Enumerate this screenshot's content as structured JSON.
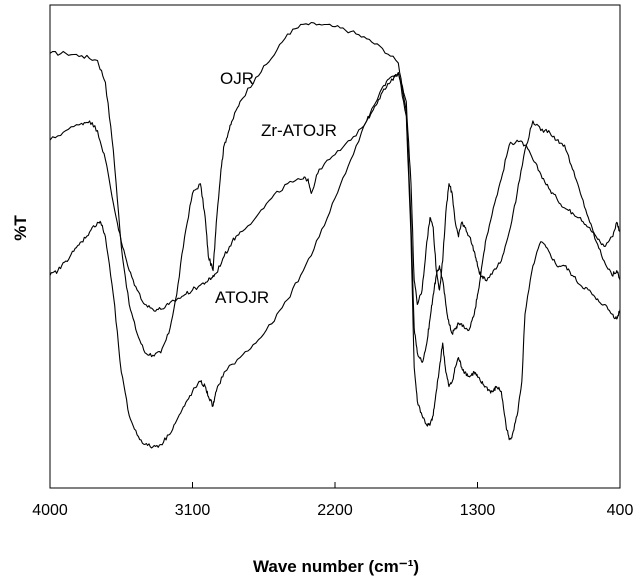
{
  "chart_data": {
    "type": "line",
    "title": "",
    "xlabel": "Wave number (cm⁻¹)",
    "ylabel": "%T",
    "xlim": [
      4000,
      400
    ],
    "x_reversed": true,
    "ylim": [
      0,
      100
    ],
    "x_ticks": [
      "4000",
      "3100",
      "2200",
      "1300",
      "400"
    ],
    "y_ticks": [],
    "grid": false,
    "legend": "none",
    "annotations": [
      "OJR",
      "Zr-ATOJR",
      "ATOJR"
    ],
    "series": [
      {
        "name": "OJR",
        "x": [
          4000,
          3900,
          3800,
          3700,
          3650,
          3600,
          3550,
          3500,
          3450,
          3400,
          3350,
          3300,
          3250,
          3200,
          3150,
          3100,
          3050,
          3020,
          3000,
          2970,
          2950,
          2920,
          2900,
          2870,
          2850,
          2800,
          2700,
          2600,
          2500,
          2400,
          2300,
          2200,
          2100,
          2000,
          1900,
          1800,
          1750,
          1720,
          1700,
          1680,
          1650,
          1620,
          1600,
          1580,
          1560,
          1540,
          1520,
          1500,
          1480,
          1460,
          1440,
          1420,
          1400,
          1380,
          1350,
          1320,
          1300,
          1280,
          1250,
          1200,
          1150,
          1100,
          1050,
          1000,
          950,
          900,
          850,
          800,
          750,
          700,
          650,
          600,
          550,
          500,
          450,
          420,
          400
        ],
        "y": [
          90,
          90,
          89.5,
          88.5,
          84,
          70,
          50,
          38,
          32,
          28,
          27.5,
          28,
          32,
          40,
          52,
          61,
          63,
          56,
          48,
          45,
          55,
          66,
          71,
          74,
          76,
          80,
          85,
          89,
          94,
          96,
          96,
          95.5,
          94.5,
          93,
          91,
          88,
          78,
          55,
          33,
          28,
          26,
          30,
          35,
          40,
          44,
          46,
          43,
          38,
          34,
          32,
          33,
          34,
          34,
          33,
          33,
          36,
          40,
          44,
          51,
          58,
          64,
          71,
          72,
          71,
          68,
          65,
          62,
          60,
          58,
          57,
          56,
          54,
          52,
          50,
          52,
          55,
          53
        ]
      },
      {
        "name": "Zr-ATOJR",
        "x": [
          4000,
          3900,
          3800,
          3750,
          3700,
          3650,
          3600,
          3550,
          3500,
          3450,
          3400,
          3350,
          3300,
          3250,
          3200,
          3150,
          3100,
          3050,
          3000,
          2980,
          2950,
          2900,
          2850,
          2800,
          2700,
          2600,
          2500,
          2400,
          2370,
          2350,
          2300,
          2200,
          2100,
          2000,
          1950,
          1900,
          1850,
          1800,
          1750,
          1720,
          1700,
          1680,
          1650,
          1620,
          1600,
          1580,
          1560,
          1540,
          1520,
          1500,
          1480,
          1460,
          1440,
          1420,
          1400,
          1380,
          1350,
          1320,
          1300,
          1280,
          1250,
          1200,
          1150,
          1100,
          1050,
          1000,
          950,
          900,
          850,
          800,
          750,
          700,
          650,
          600,
          550,
          500,
          450,
          420,
          400
        ],
        "y": [
          72,
          74,
          75.5,
          76,
          74,
          68,
          59,
          51,
          45,
          41,
          38,
          37,
          37,
          38,
          39,
          40,
          41,
          42,
          43,
          43.5,
          44.5,
          48,
          51,
          53,
          56,
          60,
          63,
          64,
          64,
          61,
          66,
          69,
          72,
          76,
          79,
          82,
          84,
          86,
          80,
          63,
          43,
          38,
          41,
          51,
          56,
          54,
          45,
          41,
          47,
          57,
          63,
          61,
          55,
          52,
          55,
          54,
          52,
          49,
          46,
          44,
          43,
          45,
          47,
          53,
          61,
          70,
          76,
          74,
          74,
          72,
          71,
          66,
          61,
          56,
          51,
          47,
          44,
          45,
          43
        ]
      },
      {
        "name": "ATOJR",
        "x": [
          4000,
          3950,
          3900,
          3850,
          3800,
          3750,
          3700,
          3680,
          3650,
          3600,
          3550,
          3500,
          3450,
          3400,
          3350,
          3300,
          3250,
          3200,
          3150,
          3100,
          3050,
          3020,
          3000,
          2970,
          2950,
          2900,
          2800,
          2700,
          2600,
          2500,
          2400,
          2300,
          2200,
          2100,
          2000,
          1900,
          1850,
          1800,
          1750,
          1720,
          1700,
          1680,
          1650,
          1620,
          1600,
          1580,
          1560,
          1540,
          1520,
          1500,
          1480,
          1460,
          1440,
          1420,
          1400,
          1380,
          1350,
          1320,
          1300,
          1280,
          1250,
          1220,
          1200,
          1180,
          1150,
          1120,
          1100,
          1080,
          1050,
          1020,
          1000,
          950,
          900,
          850,
          800,
          750,
          700,
          650,
          600,
          550,
          500,
          450,
          420,
          400
        ],
        "y": [
          44,
          45,
          47,
          49,
          51,
          53,
          55,
          55,
          52,
          40,
          24,
          15,
          11,
          9,
          8.5,
          9,
          11,
          14,
          17,
          20,
          22,
          21,
          19,
          17,
          20,
          24,
          27,
          30,
          34,
          39,
          45,
          52,
          60,
          68,
          76,
          83,
          85,
          86,
          77,
          52,
          25,
          18,
          15,
          13,
          13,
          15,
          20,
          25,
          30,
          24,
          21,
          22,
          25,
          27,
          25,
          24,
          23,
          24,
          23,
          22,
          21,
          20,
          20,
          21,
          20,
          13,
          10,
          11,
          15,
          22,
          36,
          46,
          51,
          49,
          46,
          46,
          44,
          42,
          41,
          39,
          38,
          36,
          35,
          37
        ]
      }
    ]
  }
}
